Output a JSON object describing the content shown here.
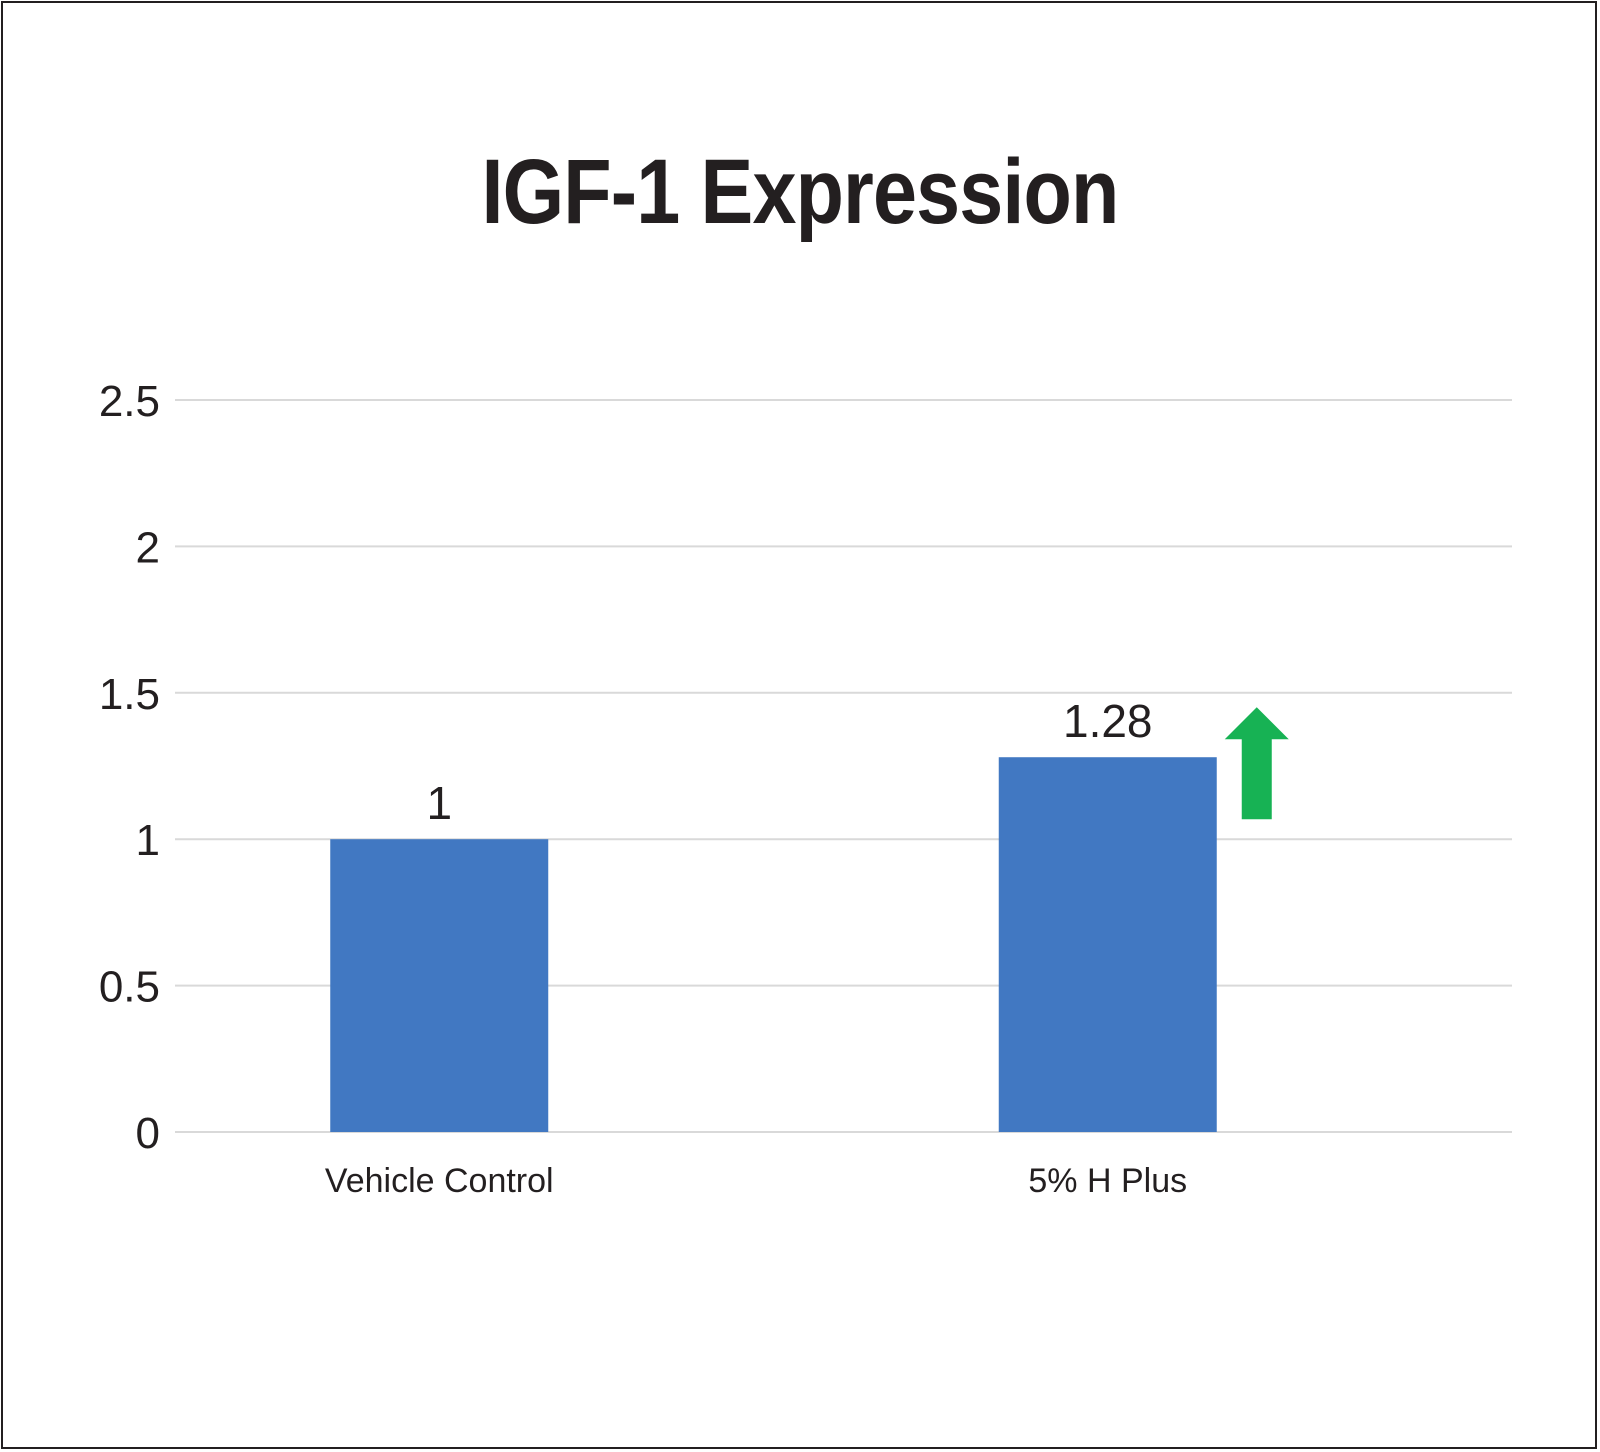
{
  "chart_data": {
    "type": "bar",
    "title": "IGF-1 Expression",
    "xlabel": "",
    "ylabel": "",
    "categories": [
      "Vehicle Control",
      "5% H Plus"
    ],
    "values": [
      1,
      1.28
    ],
    "data_labels": [
      "1",
      "1.28"
    ],
    "ylim": [
      0,
      2.5
    ],
    "yticks": [
      0,
      0.5,
      1,
      1.5,
      2,
      2.5
    ],
    "ytick_labels": [
      "0",
      "0.5",
      "1",
      "1.5",
      "2",
      "2.5"
    ],
    "grid": true,
    "legend": "none",
    "annotations": [
      {
        "type": "up-arrow-icon",
        "target_category": "5% H Plus",
        "color": "#17b254"
      }
    ],
    "colors": {
      "bar": "#4178c2",
      "grid": "#d9d9d9",
      "text": "#231f20",
      "arrow": "#17b254"
    }
  }
}
